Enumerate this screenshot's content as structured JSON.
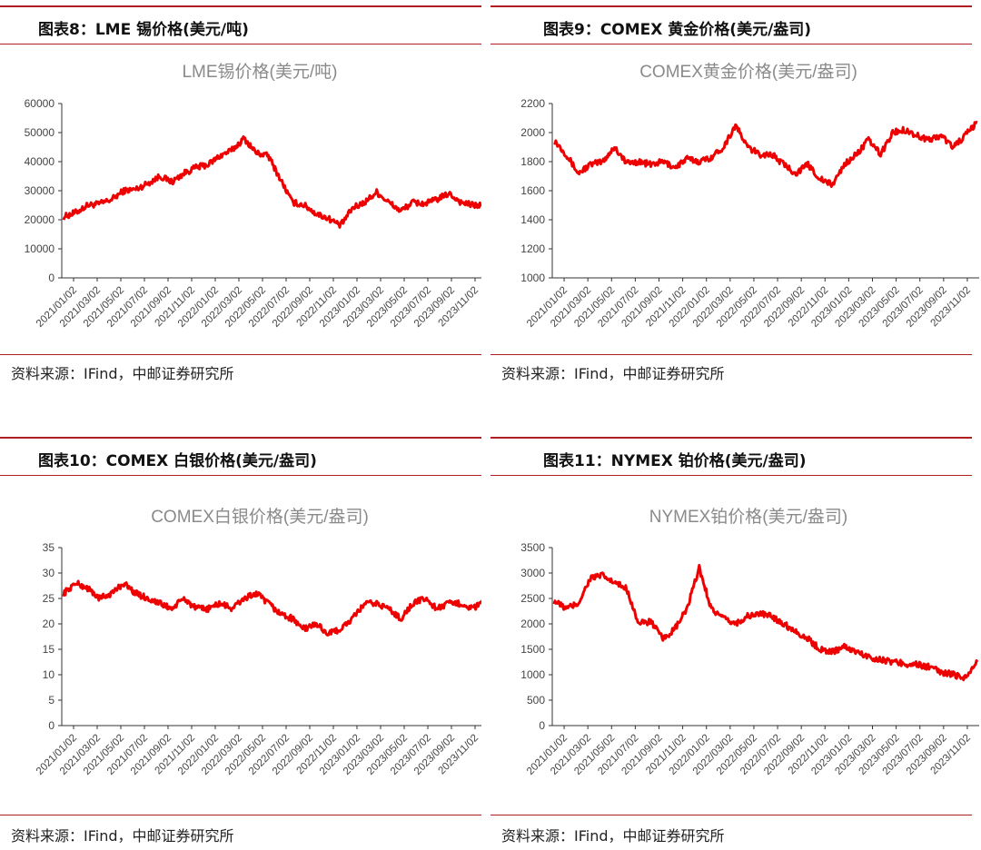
{
  "charts": [
    {
      "header": "图表8：LME 锡价格(美元/吨)",
      "source": "资料来源：IFind，中邮证券研究所",
      "chart_data": {
        "type": "line",
        "title": "LME锡价格(美元/吨)",
        "line_color": "#ee0000",
        "ylim": [
          0,
          60000
        ],
        "yticks": [
          0,
          10000,
          20000,
          30000,
          40000,
          50000,
          60000
        ],
        "xticks": [
          "2021/01/02",
          "2021/03/02",
          "2021/05/02",
          "2021/07/02",
          "2021/09/02",
          "2021/11/02",
          "2022/01/02",
          "2022/03/02",
          "2022/05/02",
          "2022/07/02",
          "2022/09/02",
          "2022/11/02",
          "2023/01/02",
          "2023/03/02",
          "2023/05/02",
          "2023/07/02",
          "2023/09/02",
          "2023/11/02"
        ],
        "x": [
          0,
          1,
          2,
          3,
          4,
          5,
          6,
          7,
          8,
          9,
          10,
          11,
          12,
          13,
          14,
          15,
          16,
          17,
          18,
          19,
          20,
          21,
          22,
          23,
          24,
          25,
          26,
          27,
          28,
          29,
          30,
          31,
          32,
          33,
          34,
          35
        ],
        "y": [
          21000,
          22500,
          25000,
          25500,
          27000,
          30000,
          30500,
          32500,
          35000,
          33000,
          36000,
          38000,
          39000,
          42000,
          44000,
          48000,
          43000,
          42000,
          34000,
          26000,
          25000,
          22000,
          20500,
          18000,
          24000,
          26000,
          29500,
          26000,
          23000,
          26000,
          25500,
          27000,
          29000,
          26000,
          25000,
          25000
        ]
      }
    },
    {
      "header": "图表9：COMEX 黄金价格(美元/盎司)",
      "source": "资料来源：IFind，中邮证券研究所",
      "chart_data": {
        "type": "line",
        "title": "COMEX黄金价格(美元/盎司)",
        "line_color": "#ee0000",
        "ylim": [
          1000,
          2200
        ],
        "yticks": [
          1000,
          1200,
          1400,
          1600,
          1800,
          2000,
          2200
        ],
        "xticks": [
          "2021/01/02",
          "2021/03/02",
          "2021/05/02",
          "2021/07/02",
          "2021/09/02",
          "2021/11/02",
          "2022/01/02",
          "2022/03/02",
          "2022/05/02",
          "2022/07/02",
          "2022/09/02",
          "2022/11/02",
          "2023/01/02",
          "2023/03/02",
          "2023/05/02",
          "2023/07/02",
          "2023/09/02",
          "2023/11/02"
        ],
        "x": [
          0,
          1,
          2,
          3,
          4,
          5,
          6,
          7,
          8,
          9,
          10,
          11,
          12,
          13,
          14,
          15,
          16,
          17,
          18,
          19,
          20,
          21,
          22,
          23,
          24,
          25,
          26,
          27,
          28,
          29,
          30,
          31,
          32,
          33,
          34,
          35
        ],
        "y": [
          1950,
          1850,
          1720,
          1780,
          1800,
          1900,
          1790,
          1800,
          1780,
          1800,
          1760,
          1820,
          1800,
          1830,
          1900,
          2050,
          1900,
          1850,
          1850,
          1780,
          1720,
          1780,
          1680,
          1640,
          1780,
          1850,
          1950,
          1850,
          2000,
          2020,
          1980,
          1950,
          1980,
          1900,
          1980,
          2070
        ]
      }
    },
    {
      "header": "图表10：COMEX 白银价格(美元/盎司)",
      "source": "资料来源：IFind，中邮证券研究所",
      "chart_data": {
        "type": "line",
        "title": "COMEX白银价格(美元/盎司)",
        "line_color": "#ee0000",
        "ylim": [
          0,
          35
        ],
        "yticks": [
          0,
          5,
          10,
          15,
          20,
          25,
          30,
          35
        ],
        "xticks": [
          "2021/01/02",
          "2021/03/02",
          "2021/05/02",
          "2021/07/02",
          "2021/09/02",
          "2021/11/02",
          "2022/01/02",
          "2022/03/02",
          "2022/05/02",
          "2022/07/02",
          "2022/09/02",
          "2022/11/02",
          "2023/01/02",
          "2023/03/02",
          "2023/05/02",
          "2023/07/02",
          "2023/09/02",
          "2023/11/02"
        ],
        "x": [
          0,
          1,
          2,
          3,
          4,
          5,
          6,
          7,
          8,
          9,
          10,
          11,
          12,
          13,
          14,
          15,
          16,
          17,
          18,
          19,
          20,
          21,
          22,
          23,
          24,
          25,
          26,
          27,
          28,
          29,
          30,
          31,
          32,
          33,
          34,
          35
        ],
        "y": [
          26,
          28,
          27,
          25,
          26,
          28,
          26,
          25,
          24,
          23,
          25,
          23,
          23,
          24,
          23,
          25,
          26,
          24,
          22,
          21,
          19,
          20,
          18,
          19,
          21,
          24,
          24,
          23,
          21,
          24,
          25,
          23,
          24,
          24,
          23,
          24.5
        ]
      }
    },
    {
      "header": "图表11：NYMEX 铂价格(美元/盎司)",
      "source": "资料来源：IFind，中邮证券研究所",
      "chart_data": {
        "type": "line",
        "title": "NYMEX铂价格(美元/盎司)",
        "line_color": "#ee0000",
        "ylim": [
          0,
          3500
        ],
        "yticks": [
          0,
          500,
          1000,
          1500,
          2000,
          2500,
          3000,
          3500
        ],
        "xticks": [
          "2021/01/02",
          "2021/03/02",
          "2021/05/02",
          "2021/07/02",
          "2021/09/02",
          "2021/11/02",
          "2022/01/02",
          "2022/03/02",
          "2022/05/02",
          "2022/07/02",
          "2022/09/02",
          "2022/11/02",
          "2023/01/02",
          "2023/03/02",
          "2023/05/02",
          "2023/07/02",
          "2023/09/02",
          "2023/11/02"
        ],
        "x": [
          0,
          1,
          2,
          3,
          4,
          5,
          6,
          7,
          8,
          9,
          10,
          11,
          12,
          13,
          14,
          15,
          16,
          17,
          18,
          19,
          20,
          21,
          22,
          23,
          24,
          25,
          26,
          27,
          28,
          29,
          30,
          31,
          32,
          33,
          34,
          35
        ],
        "y": [
          2450,
          2300,
          2400,
          2900,
          2950,
          2800,
          2700,
          2000,
          2050,
          1700,
          1900,
          2300,
          3100,
          2300,
          2100,
          2000,
          2150,
          2200,
          2150,
          2000,
          1850,
          1700,
          1500,
          1450,
          1550,
          1450,
          1350,
          1300,
          1250,
          1220,
          1200,
          1150,
          1050,
          1000,
          950,
          1250
        ]
      }
    }
  ]
}
